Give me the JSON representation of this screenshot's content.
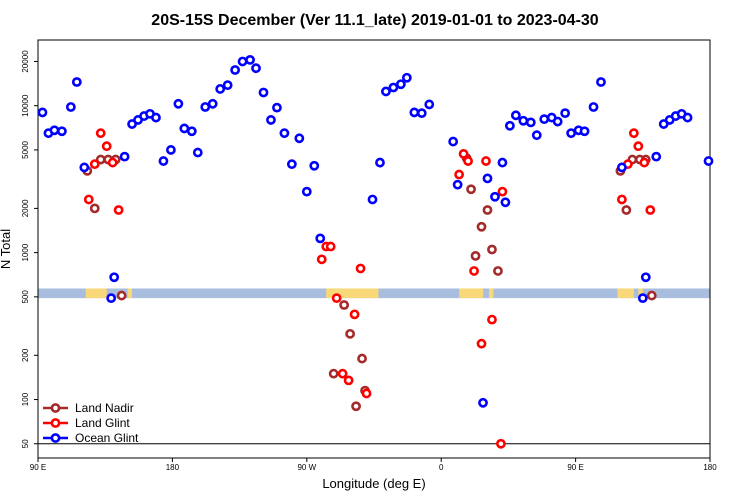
{
  "chart_data": {
    "type": "scatter",
    "title": "20S-15S December (Ver 11.1_late)   2019-01-01 to 2023-04-30",
    "xlabel": "Longitude (deg E)",
    "ylabel": "N Total",
    "xscale": "linear",
    "yscale": "log",
    "xlim": [
      90,
      540
    ],
    "ylim": [
      40,
      28000
    ],
    "xticks": [
      {
        "value": 90,
        "label": "90 E"
      },
      {
        "value": 180,
        "label": "180"
      },
      {
        "value": 270,
        "label": "90 W"
      },
      {
        "value": 360,
        "label": "0"
      },
      {
        "value": 450,
        "label": "90 E"
      },
      {
        "value": 540,
        "label": "180"
      }
    ],
    "yticks": [
      {
        "value": 50,
        "label": "50"
      },
      {
        "value": 100,
        "label": "100"
      },
      {
        "value": 200,
        "label": "200"
      },
      {
        "value": 500,
        "label": "500"
      },
      {
        "value": 1000,
        "label": "1000"
      },
      {
        "value": 2000,
        "label": "2000"
      },
      {
        "value": 5000,
        "label": "5000"
      },
      {
        "value": 10000,
        "label": "10000"
      },
      {
        "value": 20000,
        "label": "20000"
      }
    ],
    "reference_line": {
      "y": 50,
      "color": "#000000"
    },
    "band": {
      "y_low": 490,
      "y_high": 570,
      "base_color": "#a9bedf",
      "land_color": "#f8d878",
      "land_segments": [
        [
          122,
          136
        ],
        [
          150,
          153
        ],
        [
          283,
          318
        ],
        [
          372,
          388
        ],
        [
          392,
          395
        ],
        [
          478,
          489
        ],
        [
          492,
          495
        ]
      ]
    },
    "legend": {
      "position": "bottom-left"
    },
    "series": [
      {
        "name": "Land Nadir",
        "color": "#a52a2a",
        "points": [
          [
            123,
            3600
          ],
          [
            128,
            2000
          ],
          [
            132,
            4300
          ],
          [
            137,
            4300
          ],
          [
            142,
            4300
          ],
          [
            146,
            510
          ],
          [
            288,
            150
          ],
          [
            295,
            440
          ],
          [
            299,
            280
          ],
          [
            303,
            90
          ],
          [
            307,
            190
          ],
          [
            309,
            115
          ],
          [
            377,
            4400
          ],
          [
            380,
            2700
          ],
          [
            383,
            950
          ],
          [
            387,
            1500
          ],
          [
            391,
            1950
          ],
          [
            394,
            1050
          ],
          [
            398,
            750
          ],
          [
            480,
            3600
          ],
          [
            484,
            1950
          ],
          [
            488,
            4300
          ],
          [
            493,
            4300
          ],
          [
            497,
            4300
          ],
          [
            501,
            510
          ]
        ]
      },
      {
        "name": "Land Glint",
        "color": "#ff0000",
        "points": [
          [
            124,
            2300
          ],
          [
            128,
            4000
          ],
          [
            132,
            6500
          ],
          [
            136,
            5300
          ],
          [
            140,
            4100
          ],
          [
            144,
            1950
          ],
          [
            280,
            900
          ],
          [
            283,
            1100
          ],
          [
            286,
            1100
          ],
          [
            290,
            490
          ],
          [
            294,
            150
          ],
          [
            298,
            135
          ],
          [
            302,
            380
          ],
          [
            306,
            780
          ],
          [
            310,
            110
          ],
          [
            372,
            3400
          ],
          [
            375,
            4700
          ],
          [
            378,
            4200
          ],
          [
            382,
            750
          ],
          [
            387,
            240
          ],
          [
            390,
            4200
          ],
          [
            394,
            350
          ],
          [
            400,
            50
          ],
          [
            401,
            2600
          ],
          [
            481,
            2300
          ],
          [
            485,
            4000
          ],
          [
            489,
            6500
          ],
          [
            492,
            5300
          ],
          [
            496,
            4100
          ],
          [
            500,
            1950
          ]
        ]
      },
      {
        "name": "Ocean Glint",
        "color": "#0000ff",
        "points": [
          [
            93,
            9000
          ],
          [
            97,
            6500
          ],
          [
            101,
            6800
          ],
          [
            106,
            6700
          ],
          [
            112,
            9800
          ],
          [
            116,
            14500
          ],
          [
            121,
            3800
          ],
          [
            139,
            490
          ],
          [
            141,
            680
          ],
          [
            148,
            4500
          ],
          [
            153,
            7500
          ],
          [
            157,
            8000
          ],
          [
            161,
            8500
          ],
          [
            165,
            8800
          ],
          [
            169,
            8300
          ],
          [
            174,
            4200
          ],
          [
            179,
            5000
          ],
          [
            184,
            10300
          ],
          [
            188,
            7000
          ],
          [
            193,
            6700
          ],
          [
            197,
            4800
          ],
          [
            202,
            9800
          ],
          [
            207,
            10300
          ],
          [
            212,
            13000
          ],
          [
            217,
            13800
          ],
          [
            222,
            17500
          ],
          [
            227,
            20000
          ],
          [
            232,
            20500
          ],
          [
            236,
            18000
          ],
          [
            241,
            12300
          ],
          [
            246,
            8000
          ],
          [
            250,
            9700
          ],
          [
            255,
            6500
          ],
          [
            260,
            4000
          ],
          [
            265,
            6000
          ],
          [
            270,
            2600
          ],
          [
            275,
            3900
          ],
          [
            279,
            1250
          ],
          [
            314,
            2300
          ],
          [
            319,
            4100
          ],
          [
            323,
            12500
          ],
          [
            328,
            13300
          ],
          [
            333,
            14000
          ],
          [
            337,
            15500
          ],
          [
            342,
            9000
          ],
          [
            347,
            8900
          ],
          [
            352,
            10200
          ],
          [
            368,
            5700
          ],
          [
            371,
            2900
          ],
          [
            388,
            95
          ],
          [
            391,
            3200
          ],
          [
            396,
            2400
          ],
          [
            401,
            4100
          ],
          [
            403,
            2200
          ],
          [
            406,
            7300
          ],
          [
            410,
            8600
          ],
          [
            415,
            7900
          ],
          [
            420,
            7700
          ],
          [
            424,
            6300
          ],
          [
            429,
            8100
          ],
          [
            434,
            8300
          ],
          [
            438,
            7800
          ],
          [
            443,
            8900
          ],
          [
            447,
            6500
          ],
          [
            452,
            6800
          ],
          [
            456,
            6700
          ],
          [
            462,
            9800
          ],
          [
            467,
            14500
          ],
          [
            481,
            3800
          ],
          [
            495,
            490
          ],
          [
            497,
            680
          ],
          [
            504,
            4500
          ],
          [
            509,
            7500
          ],
          [
            513,
            8000
          ],
          [
            517,
            8500
          ],
          [
            521,
            8800
          ],
          [
            525,
            8300
          ],
          [
            539,
            4200
          ]
        ]
      }
    ]
  }
}
